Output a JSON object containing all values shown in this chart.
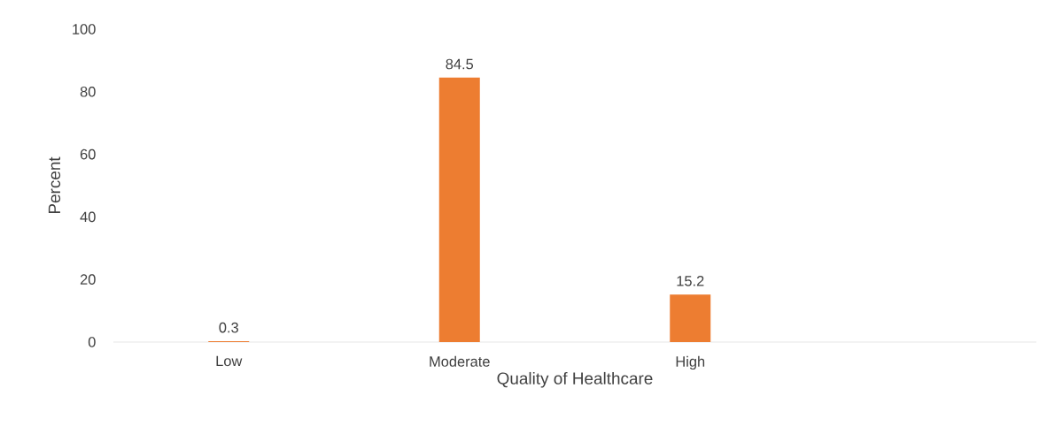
{
  "chart_data": {
    "type": "bar",
    "xlabel": "Quality of Healthcare",
    "ylabel": "Percent",
    "categories": [
      "Low",
      "Moderate",
      "High",
      null
    ],
    "values": [
      0.3,
      84.5,
      15.2,
      null
    ],
    "color": "#ed7d31",
    "ylim": [
      0,
      100
    ],
    "yticks": [
      0,
      20,
      40,
      60,
      80,
      100
    ],
    "data_labels": true,
    "grid": false
  }
}
